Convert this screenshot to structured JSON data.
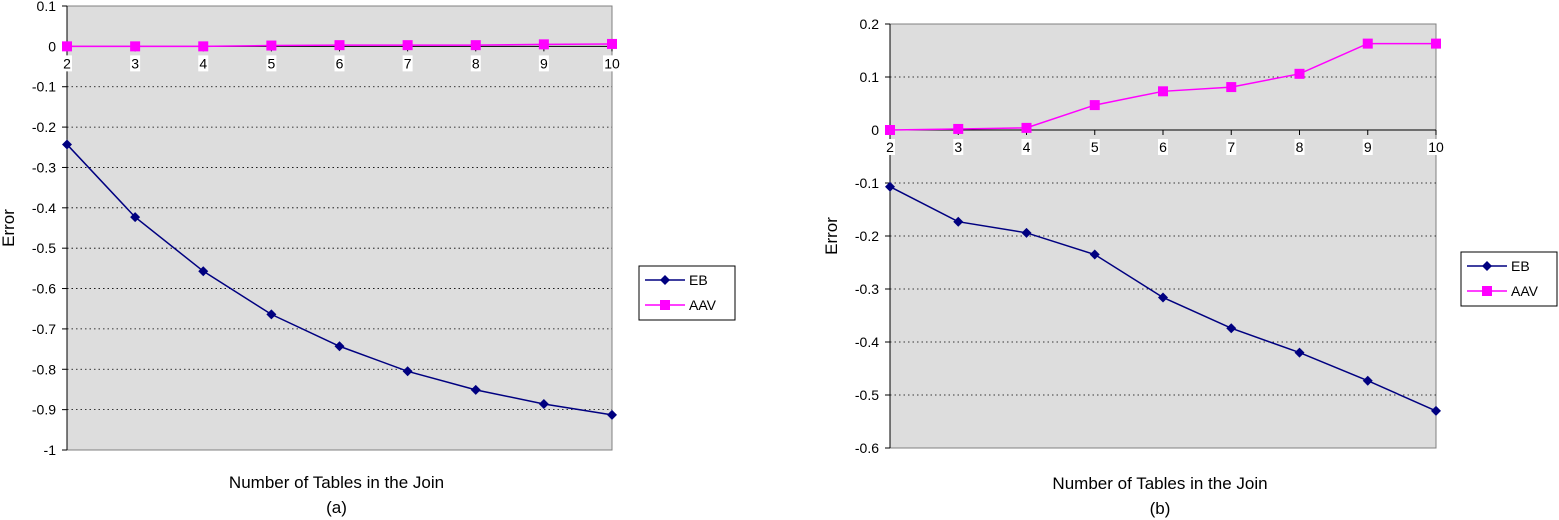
{
  "chart_data": [
    {
      "type": "line",
      "title": "",
      "xlabel": "Number of Tables in the Join",
      "ylabel": "Error",
      "caption": "(a)",
      "categories": [
        "2",
        "3",
        "4",
        "5",
        "6",
        "7",
        "8",
        "9",
        "10"
      ],
      "ylim": [
        -1,
        0.1
      ],
      "yticks": [
        "0.1",
        "0",
        "-0.1",
        "-0.2",
        "-0.3",
        "-0.4",
        "-0.5",
        "-0.6",
        "-0.7",
        "-0.8",
        "-0.9",
        "-1"
      ],
      "ytick_values": [
        0.1,
        0,
        -0.1,
        -0.2,
        -0.3,
        -0.4,
        -0.5,
        -0.6,
        -0.7,
        -0.8,
        -0.9,
        -1
      ],
      "grid": "horizontal dotted",
      "legend": "right",
      "series": [
        {
          "name": "EB",
          "marker": "diamond",
          "color": "#000080",
          "values": [
            -0.243,
            -0.423,
            -0.557,
            -0.664,
            -0.743,
            -0.805,
            -0.851,
            -0.886,
            -0.913
          ]
        },
        {
          "name": "AAV",
          "marker": "square",
          "color": "#FF00FF",
          "values": [
            0.0,
            0.0,
            0.0,
            0.002,
            0.003,
            0.003,
            0.003,
            0.005,
            0.006
          ]
        }
      ]
    },
    {
      "type": "line",
      "title": "",
      "xlabel": "Number of Tables in the Join",
      "ylabel": "Error",
      "caption": "(b)",
      "categories": [
        "2",
        "3",
        "4",
        "5",
        "6",
        "7",
        "8",
        "9",
        "10"
      ],
      "ylim": [
        -0.6,
        0.2
      ],
      "yticks": [
        "0.2",
        "0.1",
        "0",
        "-0.1",
        "-0.2",
        "-0.3",
        "-0.4",
        "-0.5",
        "-0.6"
      ],
      "ytick_values": [
        0.2,
        0.1,
        0,
        -0.1,
        -0.2,
        -0.3,
        -0.4,
        -0.5,
        -0.6
      ],
      "grid": "horizontal dotted",
      "legend": "right",
      "series": [
        {
          "name": "EB",
          "marker": "diamond",
          "color": "#000080",
          "values": [
            -0.107,
            -0.173,
            -0.194,
            -0.235,
            -0.316,
            -0.374,
            -0.42,
            -0.473,
            -0.53
          ]
        },
        {
          "name": "AAV",
          "marker": "square",
          "color": "#FF00FF",
          "values": [
            0.0,
            0.002,
            0.004,
            0.047,
            0.073,
            0.081,
            0.106,
            0.163,
            0.163
          ]
        }
      ]
    }
  ]
}
